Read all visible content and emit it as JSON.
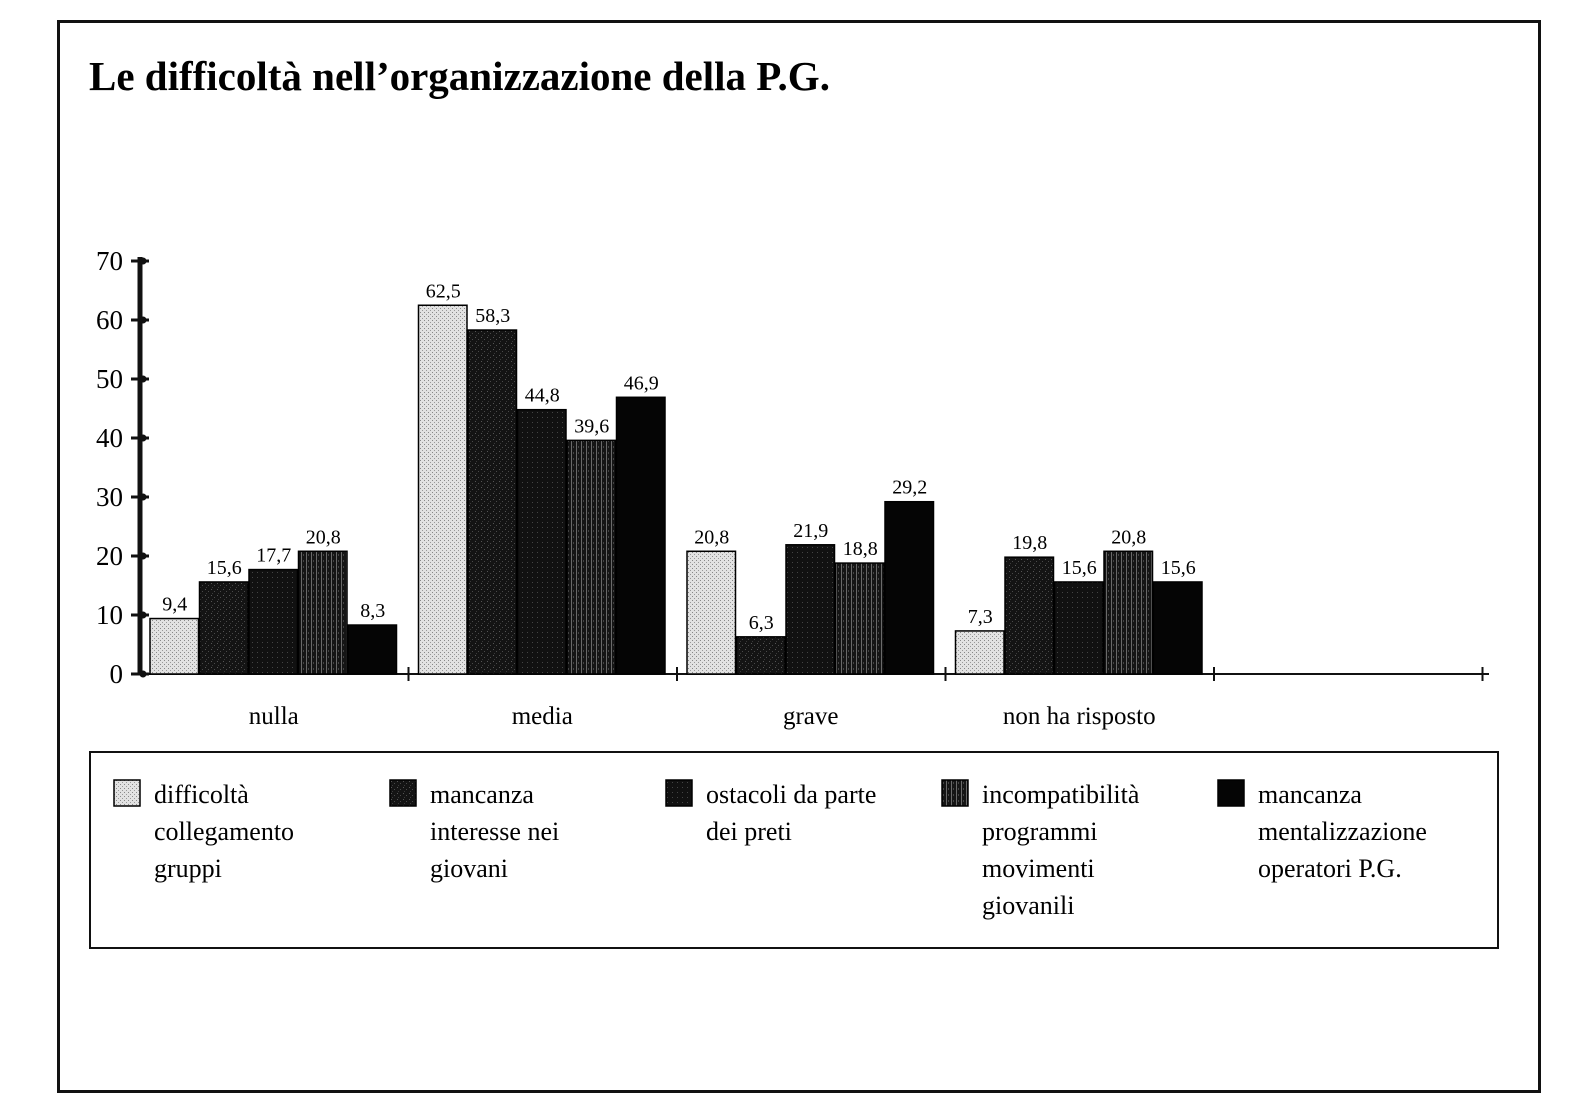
{
  "chart_data": {
    "type": "bar",
    "title": "Le difficoltà nell’organizzazione della P.G.",
    "categories": [
      "nulla",
      "media",
      "grave",
      "non ha risposto"
    ],
    "ylim": [
      0,
      70
    ],
    "yticks": [
      0,
      10,
      20,
      30,
      40,
      50,
      60,
      70
    ],
    "grid": false,
    "legend_position": "bottom",
    "series": [
      {
        "name": "difficoltà collegamento gruppi",
        "legend_lines": [
          "difficoltà",
          "collegamento",
          "gruppi"
        ],
        "values": [
          9.4,
          62.5,
          20.8,
          7.3
        ],
        "labels": [
          "9,4",
          "62,5",
          "20,8",
          "7,3"
        ],
        "pattern": "light-dots",
        "color": "#d6d6d6"
      },
      {
        "name": "mancanza interesse nei giovani",
        "legend_lines": [
          "mancanza",
          "interesse nei",
          "giovani"
        ],
        "values": [
          15.6,
          58.3,
          6.3,
          19.8
        ],
        "labels": [
          "15,6",
          "58,3",
          "6,3",
          "19,8"
        ],
        "pattern": "dark-texture",
        "color": "#1c1c1c"
      },
      {
        "name": "ostacoli da parte dei preti",
        "legend_lines": [
          "ostacoli da parte",
          "dei preti"
        ],
        "values": [
          17.7,
          44.8,
          21.9,
          15.6
        ],
        "labels": [
          "17,7",
          "44,8",
          "21,9",
          "15,6"
        ],
        "pattern": "dark-dots",
        "color": "#151515"
      },
      {
        "name": "incompatibilità programmi movimenti giovanili",
        "legend_lines": [
          "incompatibilità",
          "programmi",
          "movimenti",
          "giovanili"
        ],
        "values": [
          20.8,
          39.6,
          18.8,
          20.8
        ],
        "labels": [
          "20,8",
          "39,6",
          "18,8",
          "20,8"
        ],
        "pattern": "vertical-stripes",
        "color": "#1a1a1a"
      },
      {
        "name": "mancanza mentalizzazione operatori P.G.",
        "legend_lines": [
          "mancanza",
          "mentalizzazione",
          "operatori  P.G."
        ],
        "values": [
          8.3,
          46.9,
          29.2,
          15.6
        ],
        "labels": [
          "8,3",
          "46,9",
          "29,2",
          "15,6"
        ],
        "pattern": "solid",
        "color": "#050505"
      }
    ]
  }
}
